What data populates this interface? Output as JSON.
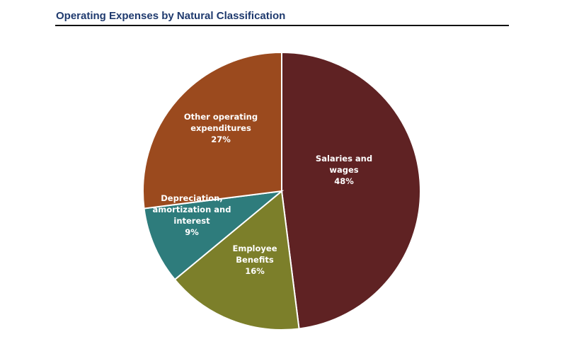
{
  "title": "Operating Expenses by Natural Classification",
  "chart_data": {
    "type": "pie",
    "title": "Operating Expenses by Natural Classification",
    "slices": [
      {
        "name": "Salaries and wages",
        "label_lines": [
          "Salaries and",
          "wages"
        ],
        "value": 48,
        "display": "48%",
        "color": "#5f2223"
      },
      {
        "name": "Employee Benefits",
        "label_lines": [
          "Employee",
          "Benefits"
        ],
        "value": 16,
        "display": "16%",
        "color": "#7c7f2a"
      },
      {
        "name": "Depreciation, amortization and interest",
        "label_lines": [
          "Depreciation,",
          "amortization and",
          "interest"
        ],
        "value": 9,
        "display": "9%",
        "color": "#2e7c7c"
      },
      {
        "name": "Other operating expenditures",
        "label_lines": [
          "Other operating",
          "expenditures"
        ],
        "value": 27,
        "display": "27%",
        "color": "#9b4a1e"
      }
    ]
  }
}
